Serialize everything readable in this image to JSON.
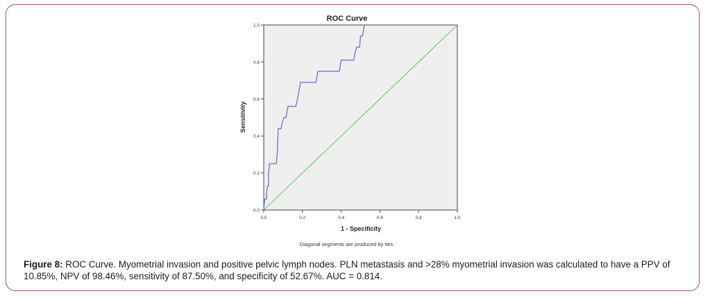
{
  "figure": {
    "label": "Figure 8:",
    "caption": " ROC Curve. Myometrial invasion and positive pelvic lymph nodes. PLN metastasis and >28% myometrial invasion was calculated to have a PPV of 10.85%, NPV of 98.46%, sensitivity of 87.50%, and specificity of 52.67%. AUC = 0.814."
  },
  "colors": {
    "frame_border": "#a3545a",
    "plot_background": "#efefef",
    "roc_line": "#6f7fc4",
    "reference_line": "#6ccf7a",
    "axis": "#444444"
  },
  "chart_data": {
    "type": "line",
    "title": "ROC Curve",
    "xlabel": "1 - Specificity",
    "ylabel": "Sensitivity",
    "xlim": [
      0,
      1
    ],
    "ylim": [
      0,
      1
    ],
    "x_ticks": [
      0.0,
      0.2,
      0.4,
      0.6,
      0.8,
      1.0
    ],
    "y_ticks": [
      0.0,
      0.2,
      0.4,
      0.6,
      0.8,
      1.0
    ],
    "x_tick_labels": [
      "0.0",
      "0.2",
      "0.4",
      "0.6",
      "0.8",
      "1.0"
    ],
    "y_tick_labels": [
      "0.0",
      "0.2",
      "0.4",
      "0.6",
      "0.8",
      "1.0"
    ],
    "footnote": "Diagonal segments are produced by ties.",
    "grid": false,
    "series": [
      {
        "name": "ROC curve",
        "x": [
          0.0,
          0.005,
          0.015,
          0.015,
          0.02,
          0.025,
          0.025,
          0.03,
          0.065,
          0.07,
          0.075,
          0.09,
          0.095,
          0.105,
          0.115,
          0.125,
          0.135,
          0.165,
          0.175,
          0.18,
          0.19,
          0.27,
          0.28,
          0.39,
          0.4,
          0.465,
          0.47,
          0.48,
          0.495,
          0.5,
          0.51,
          0.52
        ],
        "y": [
          0.0,
          0.06,
          0.06,
          0.1,
          0.13,
          0.13,
          0.2,
          0.25,
          0.25,
          0.31,
          0.44,
          0.44,
          0.47,
          0.5,
          0.5,
          0.56,
          0.56,
          0.56,
          0.6,
          0.63,
          0.69,
          0.69,
          0.75,
          0.75,
          0.81,
          0.81,
          0.84,
          0.88,
          0.88,
          0.94,
          0.94,
          1.0
        ]
      },
      {
        "name": "Reference line",
        "x": [
          0.0,
          1.0
        ],
        "y": [
          0.0,
          1.0
        ]
      }
    ]
  }
}
